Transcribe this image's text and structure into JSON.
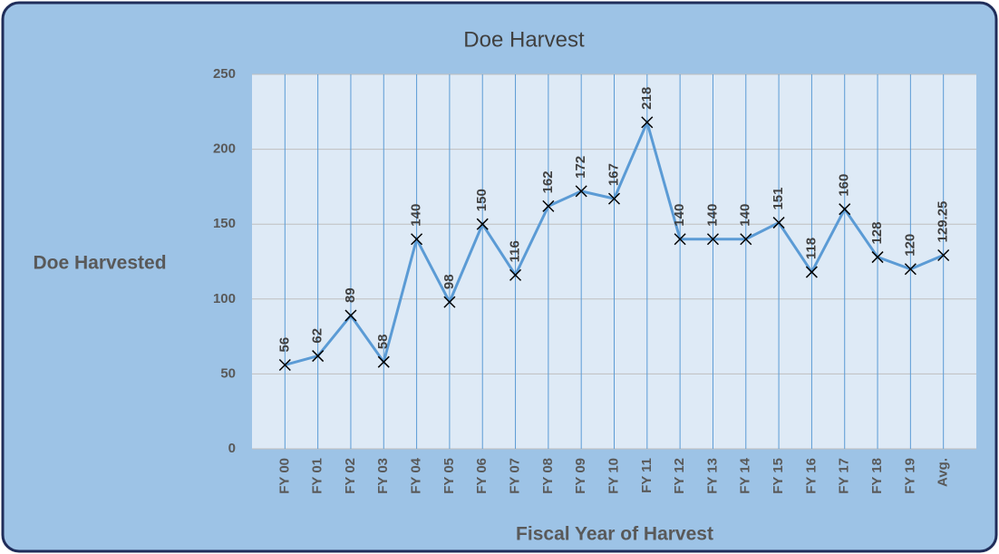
{
  "chart_data": {
    "type": "line",
    "title": "Doe Harvest",
    "y_label": "Doe Harvested",
    "x_label": "Fiscal Year of Harvest",
    "categories": [
      "FY 00",
      "FY 01",
      "FY 02",
      "FY 03",
      "FY 04",
      "FY 05",
      "FY 06",
      "FY 07",
      "FY 08",
      "FY 09",
      "FY 10",
      "FY 11",
      "FY 12",
      "FY 13",
      "FY 14",
      "FY 15",
      "FY 16",
      "FY 17",
      "FY 18",
      "FY 19",
      "Avg."
    ],
    "values": [
      56,
      62,
      89,
      58,
      140,
      98,
      150,
      116,
      162,
      172,
      167,
      218,
      140,
      140,
      140,
      151,
      118,
      160,
      128,
      120,
      129.25
    ],
    "color": "#5b9bd5",
    "marker_color": "#000000",
    "ylim": [
      0,
      250
    ],
    "yticks": [
      0,
      50,
      100,
      150,
      200,
      250
    ],
    "grid": true
  }
}
